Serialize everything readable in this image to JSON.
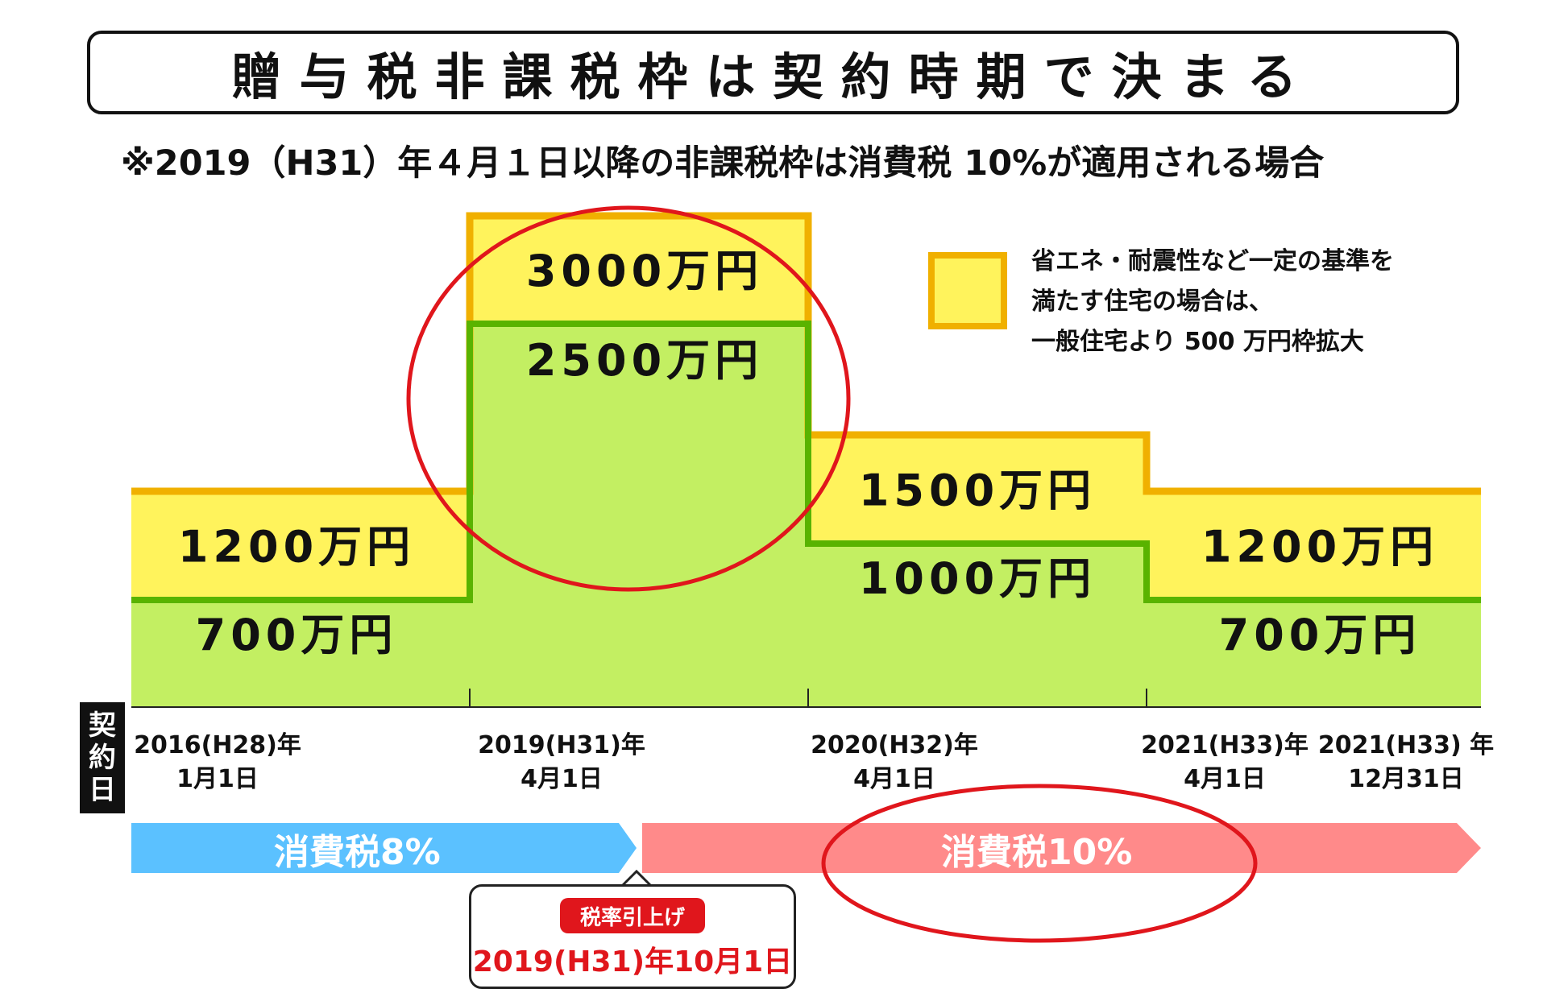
{
  "title": "贈与税非課税枠は契約時期で決まる",
  "subtitle": "※2019（H31）年４月１日以降の非課税枠は消費税 10%が適用される場合",
  "legend": {
    "line1": "省エネ・耐震性など一定の基準を",
    "line2": "満たす住宅の場合は、",
    "line3": "一般住宅より 500 万円枠拡大"
  },
  "contract_label": [
    "契",
    "約",
    "日"
  ],
  "tax_bars": {
    "tax8": "消費税8%",
    "tax10": "消費税10%"
  },
  "callout": {
    "badge": "税率引上げ",
    "date": "2019(H31)年10月1日"
  },
  "colors": {
    "green": "#c3ef62",
    "green_line": "#59b300",
    "yellow": "#fff35c",
    "yellow_line": "#f0b000",
    "blue": "#5bc1ff",
    "pink": "#ff8a8a",
    "red_circle": "#e0161c"
  },
  "chart_data": {
    "type": "area",
    "periods": [
      {
        "start": "2016(H28)年 1月1日",
        "general": 700,
        "general_label": "700万円",
        "qualified": 1200,
        "qualified_label": "1200万円"
      },
      {
        "start": "2019(H31)年 4月1日",
        "general": 2500,
        "general_label": "2500万円",
        "qualified": 3000,
        "qualified_label": "3000万円"
      },
      {
        "start": "2020(H32)年 4月1日",
        "general": 1000,
        "general_label": "1000万円",
        "qualified": 1500,
        "qualified_label": "1500万円"
      },
      {
        "start": "2021(H33)年 4月1日",
        "general": 700,
        "general_label": "700万円",
        "qualified": 1200,
        "qualified_label": "1200万円"
      }
    ],
    "end": "2021(H33) 年 12月31日",
    "dates": [
      {
        "line1": "2016(H28)年",
        "line2": "1月1日"
      },
      {
        "line1": "2019(H31)年",
        "line2": "4月1日"
      },
      {
        "line1": "2020(H32)年",
        "line2": "4月1日"
      },
      {
        "line1": "2021(H33)年",
        "line2": "4月1日"
      },
      {
        "line1": "2021(H33) 年",
        "line2": "12月31日"
      }
    ]
  }
}
